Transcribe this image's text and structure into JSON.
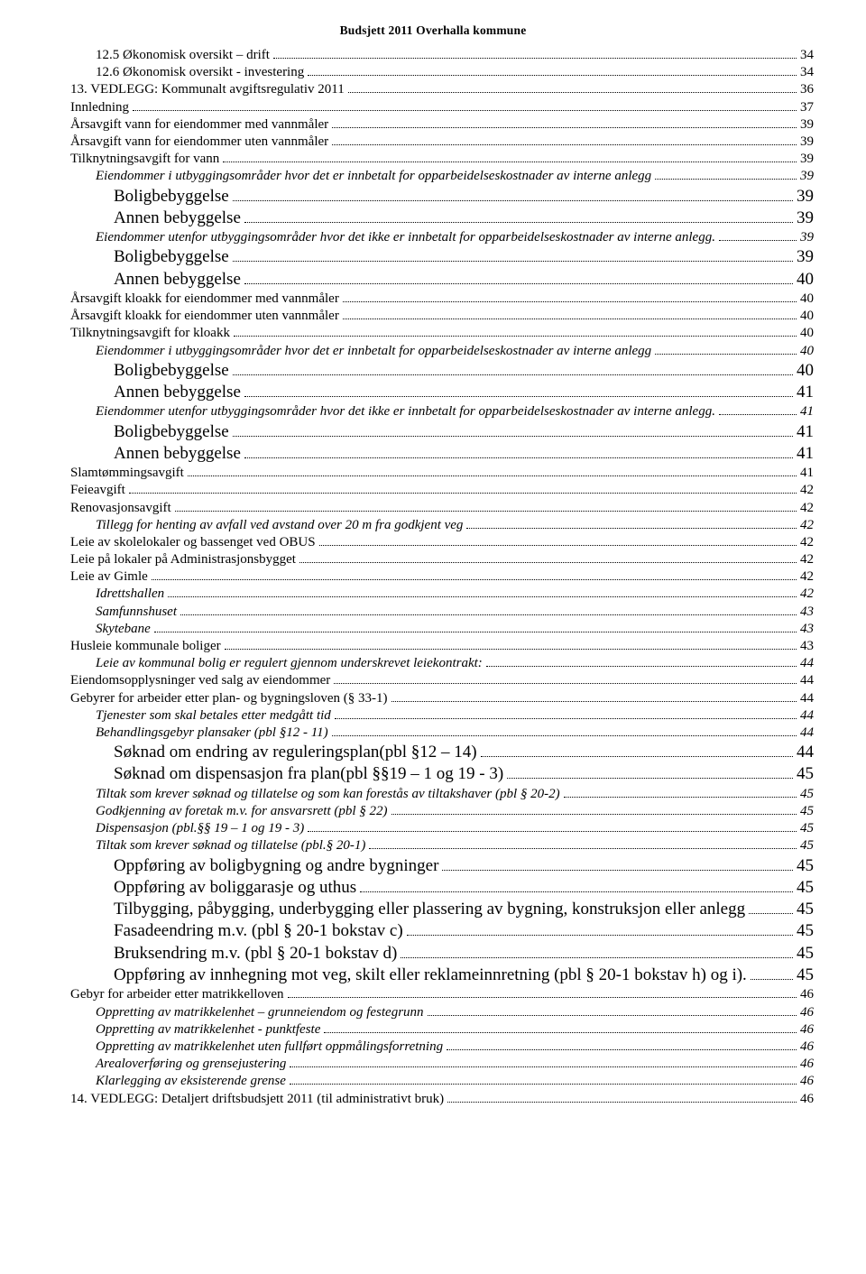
{
  "header": {
    "title": "Budsjett 2011 Overhalla kommune"
  },
  "toc": {
    "entries": [
      {
        "label": "12.5 Økonomisk oversikt – drift",
        "page": "34",
        "indent": 1,
        "face": "normal"
      },
      {
        "label": "12.6 Økonomisk oversikt - investering",
        "page": "34",
        "indent": 1,
        "face": "normal"
      },
      {
        "label": "13.    VEDLEGG: Kommunalt avgiftsregulativ 2011",
        "page": "36",
        "indent": 0,
        "face": "normal"
      },
      {
        "label": "Innledning",
        "page": "37",
        "indent": 0,
        "face": "normal"
      },
      {
        "label": "Årsavgift vann for eiendommer med vannmåler",
        "page": "39",
        "indent": 0,
        "face": "normal"
      },
      {
        "label": "Årsavgift vann for eiendommer uten vannmåler",
        "page": "39",
        "indent": 0,
        "face": "normal"
      },
      {
        "label": "Tilknytningsavgift for vann",
        "page": "39",
        "indent": 0,
        "face": "normal"
      },
      {
        "label": "Eiendommer i utbyggingsområder hvor det er innbetalt for opparbeidelseskostnader av interne anlegg",
        "page": "39",
        "indent": 1,
        "face": "italic"
      },
      {
        "label": "Boligbebyggelse",
        "page": "39",
        "indent": 2,
        "face": "large"
      },
      {
        "label": "Annen bebyggelse",
        "page": "39",
        "indent": 2,
        "face": "large"
      },
      {
        "label": "Eiendommer utenfor utbyggingsområder hvor det ikke er innbetalt for opparbeidelseskostnader av interne anlegg.",
        "page": "39",
        "indent": 1,
        "face": "italic"
      },
      {
        "label": "Boligbebyggelse",
        "page": "39",
        "indent": 2,
        "face": "large"
      },
      {
        "label": "Annen bebyggelse",
        "page": "40",
        "indent": 2,
        "face": "large"
      },
      {
        "label": "Årsavgift kloakk for eiendommer med vannmåler",
        "page": "40",
        "indent": 0,
        "face": "normal"
      },
      {
        "label": "Årsavgift kloakk for eiendommer uten vannmåler",
        "page": "40",
        "indent": 0,
        "face": "normal"
      },
      {
        "label": "Tilknytningsavgift for kloakk",
        "page": "40",
        "indent": 0,
        "face": "normal"
      },
      {
        "label": "Eiendommer i utbyggingsområder hvor det er innbetalt for opparbeidelseskostnader av interne anlegg",
        "page": "40",
        "indent": 1,
        "face": "italic"
      },
      {
        "label": "Boligbebyggelse",
        "page": "40",
        "indent": 2,
        "face": "large"
      },
      {
        "label": "Annen bebyggelse",
        "page": "41",
        "indent": 2,
        "face": "large"
      },
      {
        "label": "Eiendommer utenfor utbyggingsområder hvor det ikke er innbetalt for opparbeidelseskostnader av interne anlegg.",
        "page": "41",
        "indent": 1,
        "face": "italic"
      },
      {
        "label": "Boligbebyggelse",
        "page": "41",
        "indent": 2,
        "face": "large"
      },
      {
        "label": "Annen bebyggelse",
        "page": "41",
        "indent": 2,
        "face": "large"
      },
      {
        "label": "Slamtømmingsavgift",
        "page": "41",
        "indent": 0,
        "face": "normal"
      },
      {
        "label": "Feieavgift",
        "page": "42",
        "indent": 0,
        "face": "normal"
      },
      {
        "label": "Renovasjonsavgift",
        "page": "42",
        "indent": 0,
        "face": "normal"
      },
      {
        "label": "Tillegg for henting av avfall ved avstand over 20 m fra godkjent veg",
        "page": "42",
        "indent": 1,
        "face": "italic"
      },
      {
        "label": "Leie av skolelokaler og bassenget ved OBUS",
        "page": "42",
        "indent": 0,
        "face": "normal"
      },
      {
        "label": "Leie på lokaler på Administrasjonsbygget",
        "page": "42",
        "indent": 0,
        "face": "normal"
      },
      {
        "label": "Leie av Gimle",
        "page": "42",
        "indent": 0,
        "face": "normal"
      },
      {
        "label": "Idrettshallen",
        "page": "42",
        "indent": 1,
        "face": "italic"
      },
      {
        "label": "Samfunnshuset",
        "page": "43",
        "indent": 1,
        "face": "italic"
      },
      {
        "label": "Skytebane",
        "page": "43",
        "indent": 1,
        "face": "italic"
      },
      {
        "label": "Husleie kommunale boliger",
        "page": "43",
        "indent": 0,
        "face": "normal"
      },
      {
        "label": "Leie av kommunal bolig er regulert gjennom underskrevet leiekontrakt:",
        "page": "44",
        "indent": 1,
        "face": "italic"
      },
      {
        "label": "Eiendomsopplysninger ved salg av eiendommer",
        "page": "44",
        "indent": 0,
        "face": "normal"
      },
      {
        "label": "Gebyrer for arbeider etter plan- og bygningsloven (§ 33-1)",
        "page": "44",
        "indent": 0,
        "face": "normal"
      },
      {
        "label": "Tjenester som skal betales etter medgått tid",
        "page": "44",
        "indent": 1,
        "face": "italic"
      },
      {
        "label": "Behandlingsgebyr plansaker (pbl §12 - 11)",
        "page": "44",
        "indent": 1,
        "face": "italic"
      },
      {
        "label": "Søknad om endring av reguleringsplan(pbl §12 – 14)",
        "page": "44",
        "indent": 2,
        "face": "large"
      },
      {
        "label": "Søknad om dispensasjon fra plan(pbl §§19 – 1 og 19 - 3)",
        "page": "45",
        "indent": 2,
        "face": "large"
      },
      {
        "label": "Tiltak som krever søknad og tillatelse og som kan forestås av tiltakshaver (pbl § 20-2)",
        "page": "45",
        "indent": 1,
        "face": "italic"
      },
      {
        "label": "Godkjenning av foretak m.v. for ansvarsrett (pbl § 22)",
        "page": "45",
        "indent": 1,
        "face": "italic"
      },
      {
        "label": "Dispensasjon (pbl.§§ 19 – 1 og 19 - 3)",
        "page": "45",
        "indent": 1,
        "face": "italic"
      },
      {
        "label": "Tiltak som krever søknad og tillatelse (pbl.§ 20-1)",
        "page": "45",
        "indent": 1,
        "face": "italic"
      },
      {
        "label": "Oppføring av boligbygning og andre bygninger",
        "page": "45",
        "indent": 2,
        "face": "large"
      },
      {
        "label": "Oppføring av boliggarasje og uthus",
        "page": "45",
        "indent": 2,
        "face": "large"
      },
      {
        "label": "Tilbygging, påbygging, underbygging eller plassering av bygning, konstruksjon eller anlegg",
        "page": "45",
        "indent": 2,
        "face": "large"
      },
      {
        "label": "Fasadeendring m.v. (pbl § 20-1 bokstav c)",
        "page": "45",
        "indent": 2,
        "face": "large"
      },
      {
        "label": "Bruksendring m.v. (pbl § 20-1 bokstav d)",
        "page": "45",
        "indent": 2,
        "face": "large"
      },
      {
        "label": "Oppføring av innhegning mot veg, skilt eller reklameinnretning (pbl § 20-1 bokstav h) og i).",
        "page": "45",
        "indent": 2,
        "face": "large"
      },
      {
        "label": "Gebyr for arbeider etter matrikkelloven",
        "page": "46",
        "indent": 0,
        "face": "normal"
      },
      {
        "label": "Oppretting av matrikkelenhet – grunneiendom og festegrunn",
        "page": "46",
        "indent": 1,
        "face": "italic"
      },
      {
        "label": "Oppretting av matrikkelenhet -  punktfeste",
        "page": "46",
        "indent": 1,
        "face": "italic"
      },
      {
        "label": "Oppretting av matrikkelenhet uten fullført oppmålingsforretning",
        "page": "46",
        "indent": 1,
        "face": "italic"
      },
      {
        "label": "Arealoverføring og grensejustering",
        "page": "46",
        "indent": 1,
        "face": "italic"
      },
      {
        "label": "Klarlegging av eksisterende grense",
        "page": "46",
        "indent": 1,
        "face": "italic"
      },
      {
        "label": "14.    VEDLEGG: Detaljert driftsbudsjett 2011 (til administrativt bruk)",
        "page": "46",
        "indent": 0,
        "face": "normal"
      }
    ]
  }
}
